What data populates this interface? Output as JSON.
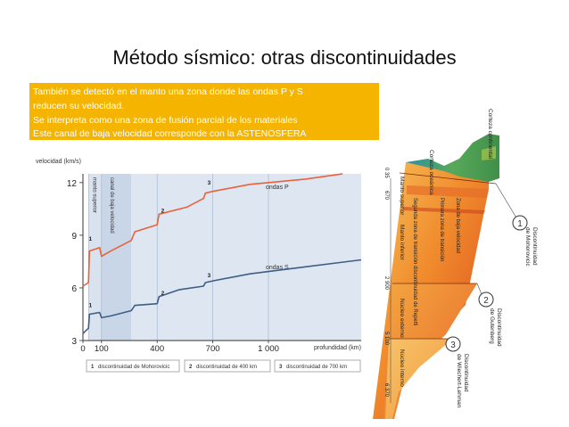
{
  "slide": {
    "title": "Método sísmico: otras discontinuidades",
    "callout_lines": [
      "También se detectó en el manto una zona donde las ondas P y S",
      "reducen su velocidad.",
      "Se interpreta como una zona de fusión parcial de los materiales",
      "Este canal de baja velocidad corresponde con la ASTENOSFERA"
    ]
  },
  "chart_data": {
    "type": "line",
    "ylabel": "velocidad (km/s)",
    "xlabel": "profundidad (km)",
    "x_ticks": [
      "0",
      "100",
      "400",
      "700",
      "1 000"
    ],
    "y_ticks": [
      "3",
      "6",
      "9",
      "12"
    ],
    "xlim": [
      0,
      1500
    ],
    "ylim": [
      3,
      12.5
    ],
    "band_labels": [
      "manto superior",
      "canal de baja velocidad"
    ],
    "series": [
      {
        "name": "ondas P",
        "color": "#e8623c",
        "x": [
          0,
          30,
          35,
          90,
          100,
          150,
          260,
          280,
          400,
          410,
          560,
          650,
          660,
          700,
          900,
          1200,
          1400
        ],
        "y": [
          6.1,
          6.3,
          8.1,
          8.3,
          7.8,
          8.1,
          8.7,
          9.2,
          9.6,
          10.2,
          10.6,
          11.1,
          11.4,
          11.5,
          11.9,
          12.2,
          12.5
        ]
      },
      {
        "name": "ondas S",
        "color": "#3f5e86",
        "x": [
          0,
          30,
          35,
          90,
          100,
          150,
          260,
          280,
          400,
          410,
          520,
          650,
          660,
          700,
          900,
          1200,
          1500
        ],
        "y": [
          3.4,
          3.7,
          4.5,
          4.6,
          4.3,
          4.4,
          4.7,
          5.0,
          5.1,
          5.5,
          5.9,
          6.1,
          6.3,
          6.4,
          6.8,
          7.2,
          7.6
        ]
      }
    ],
    "point_labels": [
      {
        "text": "1",
        "x": 40,
        "y": 8.7
      },
      {
        "text": "2",
        "x": 430,
        "y": 10.3
      },
      {
        "text": "3",
        "x": 680,
        "y": 11.9
      },
      {
        "text": "1",
        "x": 40,
        "y": 4.9
      },
      {
        "text": "2",
        "x": 430,
        "y": 5.6
      },
      {
        "text": "3",
        "x": 680,
        "y": 6.6
      }
    ],
    "legend": [
      {
        "num": "1",
        "text": "discontinuidad de Mohorovicic"
      },
      {
        "num": "2",
        "text": "discontinuidad de 400 km"
      },
      {
        "num": "3",
        "text": "discontinuidad de 700 km"
      }
    ]
  },
  "earth_section": {
    "labels": {
      "corteza_oceanica": "Corteza oceánica",
      "corteza_continental": "Corteza continental",
      "manto_superior": "Manto superior",
      "manto_inferior": "Manto inferior",
      "zona_baja_velocidad": "Zona de baja velocidad",
      "primera_zona": "Primera zona de transición",
      "segunda_zona": "Segunda zona de transición discontinuidad de Repetti",
      "nucleo_externo": "Núcleo externo",
      "nucleo_interno": "Núcleo interno"
    },
    "depths": [
      "0 35",
      "670",
      "2 900",
      "5 100",
      "6 370"
    ],
    "callouts": [
      {
        "num": "1",
        "line1": "Discontinuidad",
        "line2": "de Mohorovicic"
      },
      {
        "num": "2",
        "line1": "Discontinuidad",
        "line2": "de Gutenberg"
      },
      {
        "num": "3",
        "line1": "Discontinuidad",
        "line2": "de Wiechert-Lehman"
      }
    ]
  }
}
